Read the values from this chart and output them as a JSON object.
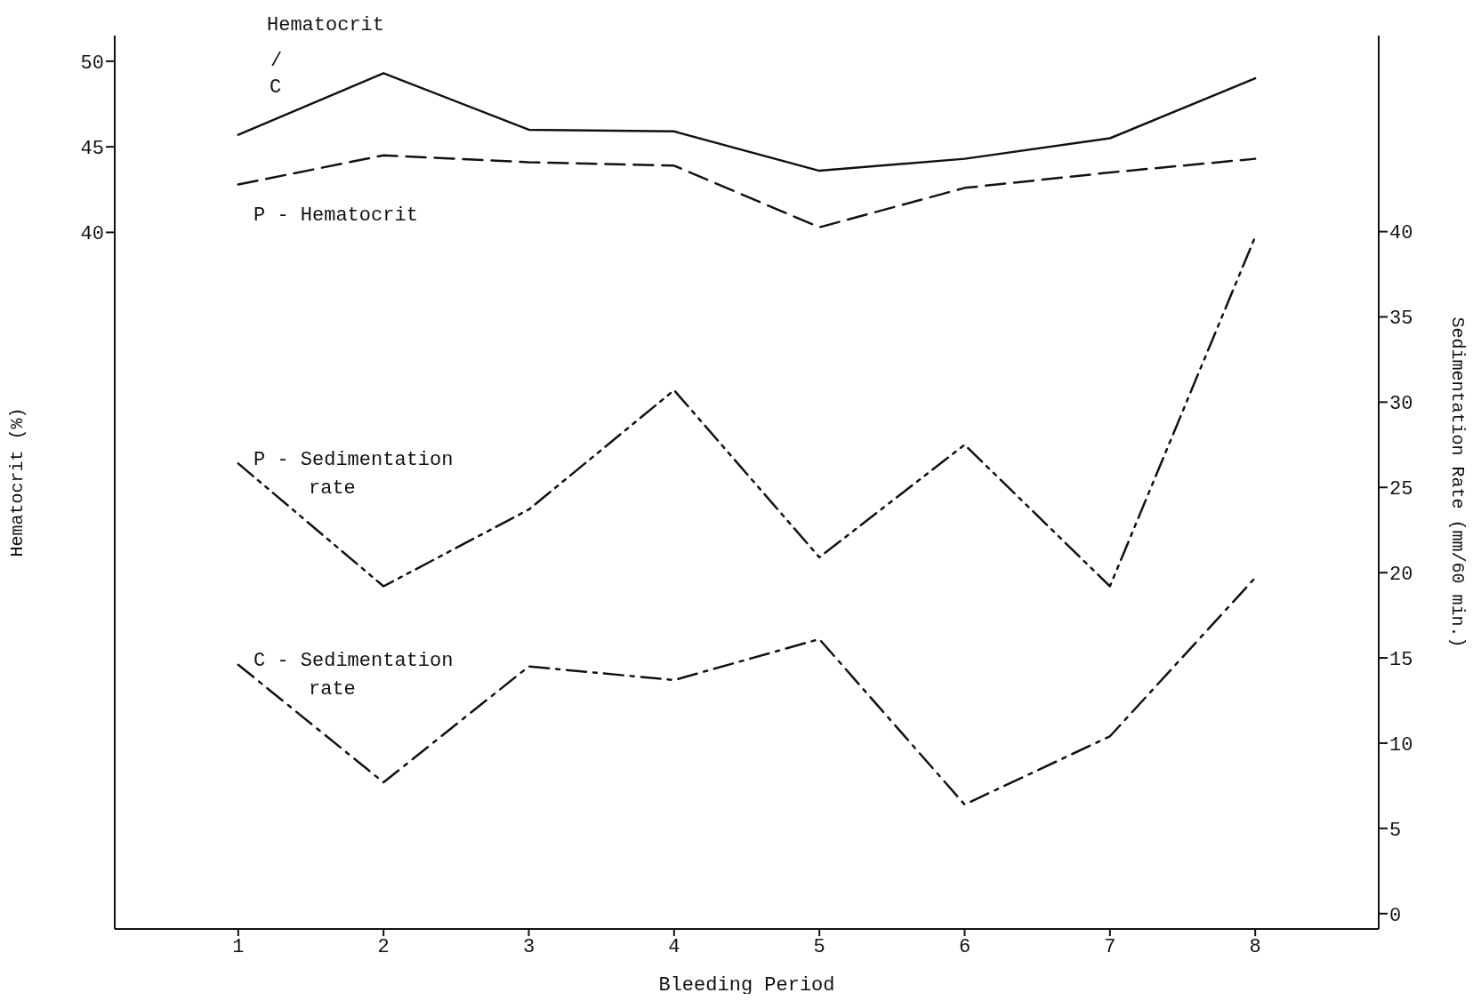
{
  "chart_data": {
    "type": "line",
    "xlabel": "Bleeding Period",
    "ylabel": "Hematocrit (%)",
    "y2label": "Sedimentation Rate (mm/60 min.)",
    "x": [
      1,
      2,
      3,
      4,
      5,
      6,
      7,
      8
    ],
    "xlim": [
      0.15,
      8.85
    ],
    "xticks": [
      1,
      2,
      3,
      4,
      5,
      6,
      7,
      8
    ],
    "ylim": [
      -0.7,
      51.5
    ],
    "yticks": [
      40,
      45,
      50
    ],
    "y2lim": [
      -0.9,
      51.5
    ],
    "y2ticks": [
      0,
      5,
      10,
      15,
      20,
      25,
      30,
      35,
      40
    ],
    "grid": false,
    "marker": "none",
    "annotations": [
      "Hematocrit",
      "/"
    ],
    "series": [
      {
        "name": "C",
        "color": "#111111",
        "line_style": "solid",
        "values": [
          45.7,
          49.3,
          46.0,
          45.9,
          43.6,
          44.3,
          45.5,
          49.0
        ]
      },
      {
        "name": "P - Hematocrit",
        "color": "#111111",
        "line_style": "dashed",
        "values": [
          42.8,
          44.5,
          44.1,
          43.9,
          40.3,
          42.6,
          43.5,
          44.3
        ]
      },
      {
        "name": "P - Sedimentation rate",
        "color": "#111111",
        "line_style": "dashdotdot",
        "axis": "y2",
        "values": [
          26.4,
          19.2,
          23.7,
          30.7,
          20.9,
          27.5,
          19.2,
          39.7
        ]
      },
      {
        "name": "C - Sedimentation rate",
        "color": "#111111",
        "line_style": "dashdot",
        "axis": "y2",
        "values": [
          14.6,
          7.7,
          14.5,
          13.7,
          16.1,
          6.4,
          10.4,
          19.7
        ]
      }
    ]
  }
}
